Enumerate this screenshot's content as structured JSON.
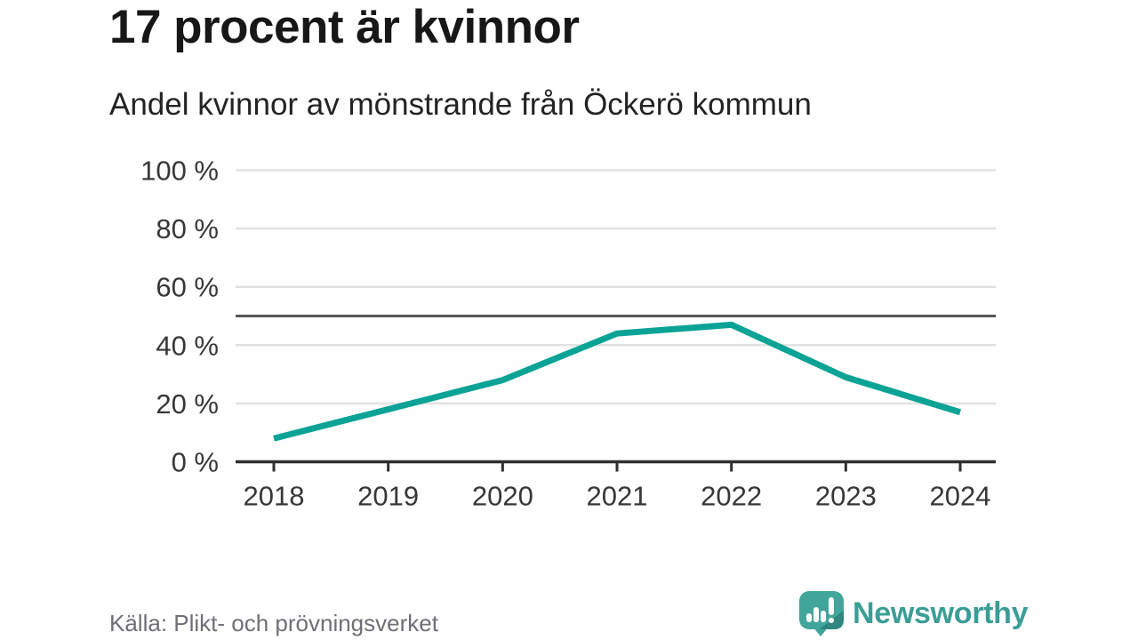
{
  "header": {
    "title": "17 procent är kvinnor",
    "subtitle": "Andel kvinnor av mönstrande från Öckerö kommun"
  },
  "chart_data": {
    "type": "line",
    "title": "Andel kvinnor av mönstrande från Öckerö kommun",
    "categories": [
      "2018",
      "2019",
      "2020",
      "2021",
      "2022",
      "2023",
      "2024"
    ],
    "series": [
      {
        "name": "Andel kvinnor",
        "values": [
          8,
          18,
          28,
          44,
          47,
          29,
          17
        ]
      }
    ],
    "ylim": [
      0,
      100
    ],
    "yticks": [
      0,
      20,
      40,
      60,
      80,
      100
    ],
    "ytick_labels": [
      "0 %",
      "20 %",
      "40 %",
      "60 %",
      "80 %",
      "100 %"
    ],
    "reference_line": 50,
    "grid": "horizontal",
    "legend": "none"
  },
  "footer": {
    "source": "Källa: Plikt- och prövningsverket",
    "brand": "Newsworthy"
  },
  "colors": {
    "title": "#171717",
    "subtitle": "#232323",
    "axis_label": "#373737",
    "gridline": "#e2e2e2",
    "reference_line": "#55555b",
    "axis_line": "#2f2f2f",
    "line": "#0aa396",
    "source_text": "#6f6f78",
    "brand_teal": "#3a9e96",
    "bubble": "#42a59c",
    "bubble_shade": "#2e867f"
  }
}
